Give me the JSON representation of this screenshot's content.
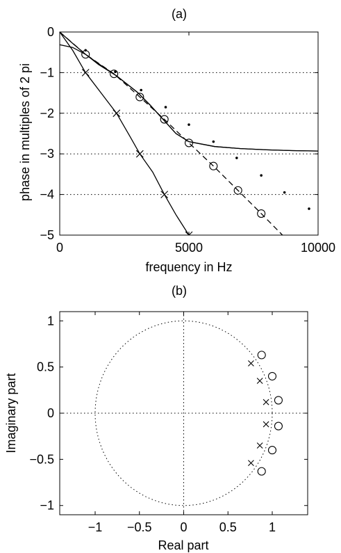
{
  "chart_data": [
    {
      "type": "line",
      "title": "(a)",
      "xlabel": "frequency in Hz",
      "ylabel": "phase in multiples of 2 pi",
      "xlim": [
        0,
        10000
      ],
      "ylim": [
        -5,
        0
      ],
      "xticks": [
        0,
        5000,
        10000
      ],
      "yticks": [
        0,
        -1,
        -2,
        -3,
        -4,
        -5
      ],
      "grid": "horizontal dotted",
      "series": [
        {
          "style": "solid",
          "x": [
            0,
            500,
            1000,
            1500,
            2200,
            3000,
            3500,
            4000,
            4500,
            5000,
            6000,
            7000,
            8000,
            9000,
            10000
          ],
          "y": [
            0,
            -0.28,
            -0.55,
            -0.8,
            -1.08,
            -1.48,
            -1.8,
            -2.15,
            -2.5,
            -2.7,
            -2.82,
            -2.87,
            -2.9,
            -2.92,
            -2.93
          ]
        },
        {
          "style": "solid",
          "x": [
            -100,
            500,
            1000,
            1500,
            2200,
            3000,
            3500,
            4000,
            4500,
            5000,
            6000,
            7000,
            8000,
            9000,
            10000
          ],
          "y": [
            -0.3,
            -0.38,
            -0.55,
            -0.78,
            -1.08,
            -1.48,
            -1.8,
            -2.15,
            -2.5,
            -2.7,
            -2.82,
            -2.87,
            -2.9,
            -2.92,
            -2.93
          ]
        },
        {
          "style": "dashed",
          "marker": "circle",
          "x": [
            0,
            1000,
            2100,
            3100,
            4050,
            5000,
            5950,
            6900,
            7800,
            8700
          ],
          "y": [
            0,
            -0.55,
            -1.03,
            -1.6,
            -2.15,
            -2.73,
            -3.3,
            -3.9,
            -4.47,
            -5.05
          ],
          "marker_x": [
            1000,
            2100,
            3100,
            4050,
            5000,
            5950,
            6900,
            7800
          ],
          "marker_y": [
            -0.55,
            -1.03,
            -1.6,
            -2.15,
            -2.73,
            -3.3,
            -3.9,
            -4.47
          ]
        },
        {
          "style": "solid",
          "marker": "x",
          "x": [
            0,
            500,
            1000,
            1600,
            2200,
            2700,
            3100,
            3600,
            4050,
            4500,
            5000
          ],
          "y": [
            0,
            -0.45,
            -1.0,
            -1.5,
            -2.0,
            -2.55,
            -3.0,
            -3.45,
            -4.0,
            -4.5,
            -5.0
          ],
          "marker_x": [
            1000,
            2200,
            3100,
            4050,
            5000
          ],
          "marker_y": [
            -1.0,
            -2.0,
            -3.0,
            -4.0,
            -5.0
          ]
        },
        {
          "style": "none",
          "marker": "dot",
          "x": [
            1000,
            2150,
            3150,
            4100,
            5000,
            5950,
            6850,
            7800,
            8700,
            9650
          ],
          "y": [
            -0.45,
            -0.98,
            -1.43,
            -1.85,
            -2.28,
            -2.7,
            -3.1,
            -3.53,
            -3.95,
            -4.35
          ]
        }
      ]
    },
    {
      "type": "scatter",
      "title": "(b)",
      "xlabel": "Real part",
      "ylabel": "Imaginary part",
      "xlim": [
        -1.4,
        1.4
      ],
      "ylim": [
        -1.1,
        1.1
      ],
      "xticks": [
        -1,
        -0.5,
        0,
        0.5,
        1
      ],
      "xtick_labels": [
        "−1",
        "−0.5",
        "0",
        "0.5",
        "1"
      ],
      "yticks": [
        1,
        0.5,
        0,
        -0.5,
        -1
      ],
      "ytick_labels": [
        "1",
        "0.5",
        "0",
        "−0.5",
        "−1"
      ],
      "unit_circle": true,
      "zero_lines": "dotted",
      "series": [
        {
          "marker": "circle",
          "x": [
            0.88,
            1.0,
            1.07,
            1.07,
            1.0,
            0.88
          ],
          "y": [
            0.63,
            0.4,
            0.14,
            -0.14,
            -0.4,
            -0.63
          ]
        },
        {
          "marker": "x",
          "x": [
            0.76,
            0.86,
            0.93,
            0.93,
            0.86,
            0.76
          ],
          "y": [
            0.54,
            0.35,
            0.12,
            -0.12,
            -0.35,
            -0.54
          ]
        }
      ]
    }
  ]
}
